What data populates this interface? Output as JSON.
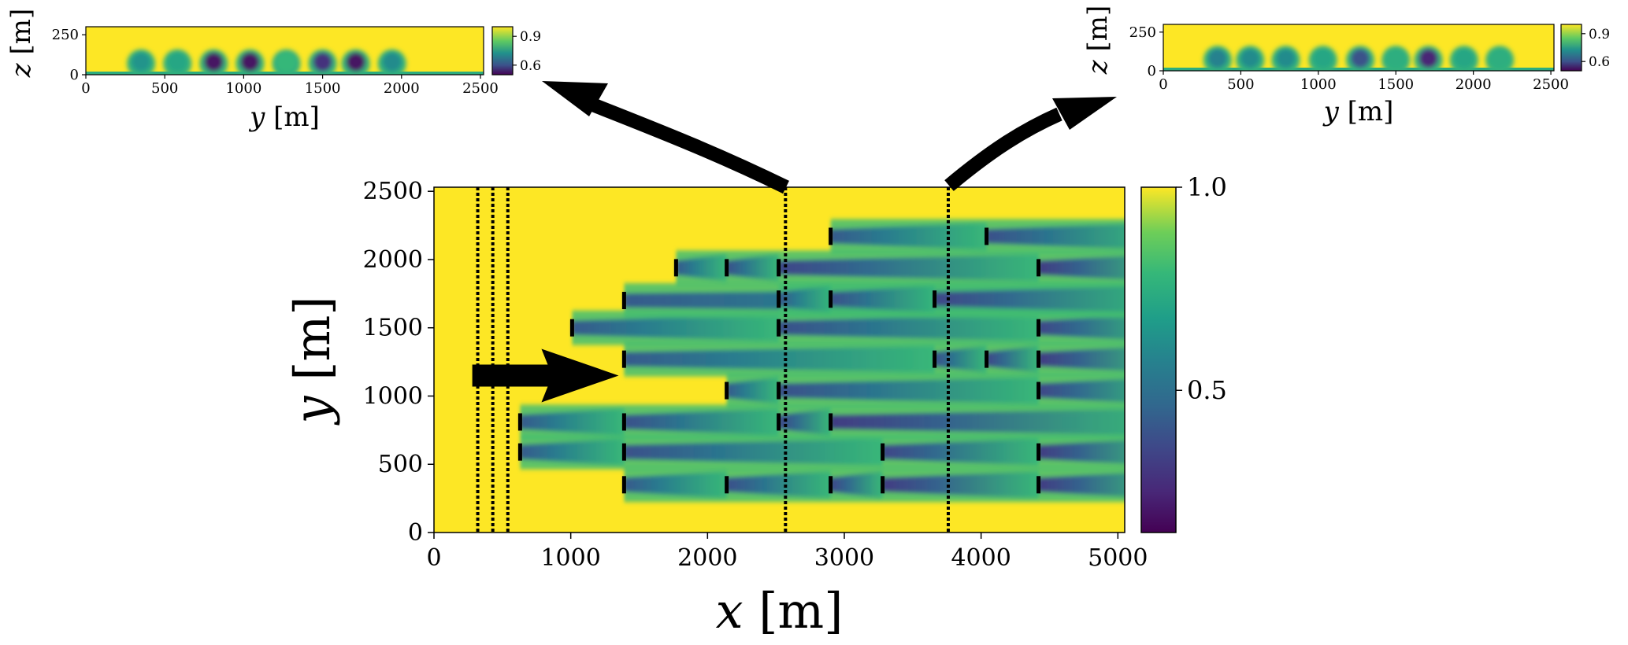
{
  "chart_data": [
    {
      "id": "main",
      "type": "heatmap",
      "description_units": "normalized wind speed field at hub height; turbines shown as short vertical bars, wind direction arrow, sampling planes dotted",
      "xlabel": "x [m]",
      "ylabel": "y [m]",
      "xlim": [
        0,
        5050
      ],
      "ylim": [
        0,
        2530
      ],
      "xticks": [
        0,
        1000,
        2000,
        3000,
        4000,
        5000
      ],
      "yticks": [
        0,
        500,
        1000,
        1500,
        2000,
        2500
      ],
      "colorbar": {
        "min": 0.15,
        "max": 1.0,
        "ticks": [
          0.5,
          1.0
        ],
        "colormap": "viridis"
      },
      "inflow_planes_x": [
        320,
        430,
        540
      ],
      "sample_planes_x": [
        2570,
        3760
      ],
      "wind_arrow": {
        "x0": 280,
        "x1": 1350,
        "y": 1150
      },
      "turbines": [
        {
          "x": 630,
          "y": 810
        },
        {
          "x": 630,
          "y": 590
        },
        {
          "x": 1010,
          "y": 1500
        },
        {
          "x": 1390,
          "y": 1700
        },
        {
          "x": 1390,
          "y": 1270
        },
        {
          "x": 1390,
          "y": 810
        },
        {
          "x": 1390,
          "y": 590
        },
        {
          "x": 1390,
          "y": 350
        },
        {
          "x": 1770,
          "y": 1940
        },
        {
          "x": 2140,
          "y": 1940
        },
        {
          "x": 2140,
          "y": 1040
        },
        {
          "x": 2140,
          "y": 350
        },
        {
          "x": 2520,
          "y": 1940
        },
        {
          "x": 2520,
          "y": 1710
        },
        {
          "x": 2520,
          "y": 1500
        },
        {
          "x": 2520,
          "y": 1040
        },
        {
          "x": 2520,
          "y": 810
        },
        {
          "x": 2900,
          "y": 2170
        },
        {
          "x": 2900,
          "y": 1710
        },
        {
          "x": 2900,
          "y": 810
        },
        {
          "x": 2900,
          "y": 350
        },
        {
          "x": 3280,
          "y": 590
        },
        {
          "x": 3280,
          "y": 350
        },
        {
          "x": 3660,
          "y": 1710
        },
        {
          "x": 3660,
          "y": 1270
        },
        {
          "x": 4040,
          "y": 2170
        },
        {
          "x": 4040,
          "y": 1270
        },
        {
          "x": 4420,
          "y": 1940
        },
        {
          "x": 4420,
          "y": 1500
        },
        {
          "x": 4420,
          "y": 1270
        },
        {
          "x": 4420,
          "y": 1040
        },
        {
          "x": 4420,
          "y": 590
        },
        {
          "x": 4420,
          "y": 350
        }
      ]
    },
    {
      "id": "slice-left",
      "type": "heatmap",
      "xlabel": "y [m]",
      "ylabel": "z [m]",
      "xlim": [
        0,
        2520
      ],
      "ylim": [
        0,
        300
      ],
      "xticks": [
        0,
        500,
        1000,
        1500,
        2000,
        2500
      ],
      "yticks": [
        0,
        250
      ],
      "colorbar": {
        "min": 0.5,
        "max": 1.0,
        "ticks": [
          0.6,
          0.9
        ],
        "colormap": "viridis"
      },
      "wakes": [
        {
          "y": 350,
          "deficit": 0.2
        },
        {
          "y": 580,
          "deficit": 0.16
        },
        {
          "y": 810,
          "deficit": 0.45
        },
        {
          "y": 1040,
          "deficit": 0.45
        },
        {
          "y": 1270,
          "deficit": 0.12
        },
        {
          "y": 1500,
          "deficit": 0.4
        },
        {
          "y": 1710,
          "deficit": 0.45
        },
        {
          "y": 1940,
          "deficit": 0.22
        }
      ]
    },
    {
      "id": "slice-right",
      "type": "heatmap",
      "xlabel": "y [m]",
      "ylabel": "z [m]",
      "xlim": [
        0,
        2520
      ],
      "ylim": [
        0,
        300
      ],
      "xticks": [
        0,
        500,
        1000,
        1500,
        2000,
        2500
      ],
      "yticks": [
        0,
        250
      ],
      "colorbar": {
        "min": 0.5,
        "max": 1.0,
        "ticks": [
          0.6,
          0.9
        ],
        "colormap": "viridis"
      },
      "wakes": [
        {
          "y": 350,
          "deficit": 0.24
        },
        {
          "y": 560,
          "deficit": 0.22
        },
        {
          "y": 790,
          "deficit": 0.22
        },
        {
          "y": 1030,
          "deficit": 0.16
        },
        {
          "y": 1270,
          "deficit": 0.34
        },
        {
          "y": 1500,
          "deficit": 0.14
        },
        {
          "y": 1710,
          "deficit": 0.42
        },
        {
          "y": 1940,
          "deficit": 0.16
        },
        {
          "y": 2170,
          "deficit": 0.14
        }
      ]
    }
  ]
}
